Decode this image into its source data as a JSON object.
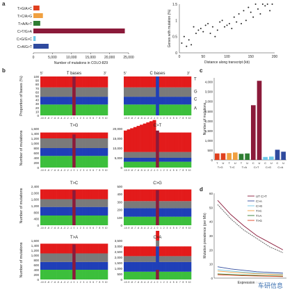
{
  "watermark": "车研信息",
  "colors": {
    "T": "#e31b1b",
    "G": "#7a7a7a",
    "C": "#1f3fb8",
    "A": "#3cbf3c",
    "center": "#8b1a3a"
  },
  "chart_data": [
    {
      "id": "a-left",
      "type": "bar",
      "orientation": "horizontal",
      "categories": [
        "T>G/A>C",
        "T>C/A>G",
        "T>A/A>T",
        "C>T/G>A",
        "C>G/G>C",
        "C>A/G>T"
      ],
      "values": [
        1600,
        2500,
        1800,
        24000,
        600,
        4000
      ],
      "colors": [
        "#e0401e",
        "#f0a040",
        "#2e7d32",
        "#8b1a3a",
        "#6ec8e8",
        "#2f4a9e"
      ],
      "xlim": [
        0,
        25000
      ],
      "xticks": [
        "0",
        "5,000",
        "10,000",
        "15,000",
        "20,000",
        "25,000"
      ],
      "xlabel": "Number of mutations in COLO-829"
    },
    {
      "id": "a-right",
      "type": "scatter",
      "x": [
        5,
        10,
        15,
        20,
        25,
        30,
        35,
        40,
        45,
        50,
        55,
        60,
        65,
        70,
        75,
        80,
        85,
        90,
        95,
        100,
        105,
        110,
        115,
        120,
        125,
        130,
        135,
        140,
        145,
        150,
        155,
        160,
        165,
        170,
        175,
        180,
        185,
        190,
        195
      ],
      "y": [
        0.3,
        0.5,
        0.2,
        0.4,
        0.25,
        0.8,
        0.6,
        0.7,
        0.75,
        0.65,
        0.85,
        0.9,
        0.6,
        0.8,
        0.5,
        0.7,
        0.95,
        1.0,
        0.8,
        0.85,
        0.9,
        0.75,
        1.1,
        0.95,
        1.2,
        0.9,
        1.3,
        1.0,
        1.4,
        1.25,
        1.1,
        1.5,
        1.35,
        1.2,
        1.5,
        1.45,
        1.6,
        1.3,
        1.7
      ],
      "xlim": [
        0,
        200
      ],
      "ylim": [
        0,
        1.5
      ],
      "xticks": [
        "0",
        "50",
        "100",
        "150",
        "200"
      ],
      "yticks": [
        "0",
        "0.5",
        "1",
        "1.5"
      ],
      "xlabel": "Distance along transcript (kb)",
      "ylabel": "Genes with mutation (%)"
    },
    {
      "id": "b-prop-T",
      "type": "stacked-bar",
      "title": "T bases",
      "prime_left": "5'",
      "prime_right": "3'",
      "ylabel": "Proportion of bases (%)",
      "yticks": [
        "0",
        "10",
        "20",
        "30",
        "40",
        "50",
        "60",
        "70",
        "80",
        "90",
        "100"
      ]
    },
    {
      "id": "b-prop-C",
      "type": "stacked-bar",
      "title": "C bases",
      "prime_left": "5'",
      "prime_right": "3'",
      "side_labels": [
        "T",
        "G",
        "C",
        "A"
      ]
    },
    {
      "id": "b-TG",
      "type": "stacked-bar",
      "title": "T>G",
      "ylabel": "Number of mutations",
      "yticks": [
        "0",
        "200",
        "400",
        "600",
        "800",
        "1,000",
        "1,200",
        "1,400",
        "1,600"
      ]
    },
    {
      "id": "b-CT",
      "type": "stacked-bar",
      "title": "C>T",
      "yticks": [
        "0",
        "5,000",
        "10,000",
        "15,000",
        "20,000"
      ]
    },
    {
      "id": "b-TC",
      "type": "stacked-bar",
      "title": "T>C",
      "ylabel": "Number of mutations",
      "yticks": [
        "0",
        "400",
        "800",
        "1,200",
        "1,600",
        "2,000",
        "2,400"
      ]
    },
    {
      "id": "b-CG",
      "type": "stacked-bar",
      "title": "C>G",
      "yticks": [
        "0",
        "100",
        "200",
        "300",
        "400",
        "500"
      ]
    },
    {
      "id": "b-TA",
      "type": "stacked-bar",
      "title": "T>A",
      "ylabel": "Number of mutations",
      "yticks": [
        "0",
        "200",
        "400",
        "600",
        "800",
        "1,000",
        "1,200",
        "1,400",
        "1,600"
      ]
    },
    {
      "id": "b-CA",
      "type": "stacked-bar",
      "title": "C>A",
      "yticks": [
        "0",
        "500",
        "1,000",
        "1,500",
        "2,000",
        "2,500",
        "3,000",
        "3,500"
      ]
    },
    {
      "id": "c",
      "type": "bar",
      "ylabel": "Number of mutations",
      "yticks": [
        "0",
        "500",
        "1,000",
        "1,500",
        "2,000",
        "2,500",
        "3,000",
        "3,500",
        "4,000"
      ],
      "ylim": [
        0,
        4200
      ],
      "categories": [
        "T",
        "U",
        "T",
        "U",
        "T",
        "U",
        "C",
        "U",
        "C",
        "U",
        "C",
        "U"
      ],
      "group_labels": [
        "T>G",
        "T>C",
        "T>A",
        "C>T",
        "C>G",
        "C>A"
      ],
      "values": [
        330,
        340,
        350,
        380,
        310,
        330,
        2800,
        4050,
        150,
        170,
        520,
        420
      ],
      "colors": [
        "#e0401e",
        "#e0401e",
        "#f0a040",
        "#f0a040",
        "#2e7d32",
        "#2e7d32",
        "#8b1a3a",
        "#8b1a3a",
        "#6ec8e8",
        "#6ec8e8",
        "#2f4a9e",
        "#2f4a9e"
      ]
    },
    {
      "id": "d",
      "type": "line",
      "ylabel": "Mutation prevalence (per Mb)",
      "xlabel": "Expression level",
      "legend": [
        "UT C>T",
        "C>A",
        "C>G",
        "T>C",
        "T>A",
        "T>G"
      ],
      "yticks": [
        "0",
        "10",
        "20",
        "30",
        "40",
        "50",
        "60"
      ],
      "ylim": [
        0,
        60
      ],
      "series": [
        {
          "name": "C>T U",
          "values": [
            55,
            45,
            37,
            30,
            25,
            20
          ]
        },
        {
          "name": "C>T T",
          "values": [
            52,
            42,
            34,
            28,
            22,
            18
          ]
        },
        {
          "name": "C>A",
          "values": [
            8,
            6.5,
            5.5,
            4.5,
            4,
            3.5
          ]
        },
        {
          "name": "C>G",
          "values": [
            6,
            5,
            4.2,
            3.5,
            3,
            2.6
          ]
        },
        {
          "name": "T>C",
          "values": [
            5,
            4.2,
            3.6,
            3.1,
            2.7,
            2.3
          ]
        },
        {
          "name": "T>A",
          "values": [
            3,
            2.6,
            2.2,
            1.9,
            1.6,
            1.4
          ]
        },
        {
          "name": "T>G",
          "values": [
            2.4,
            2.0,
            1.7,
            1.5,
            1.3,
            1.1
          ]
        }
      ]
    }
  ]
}
